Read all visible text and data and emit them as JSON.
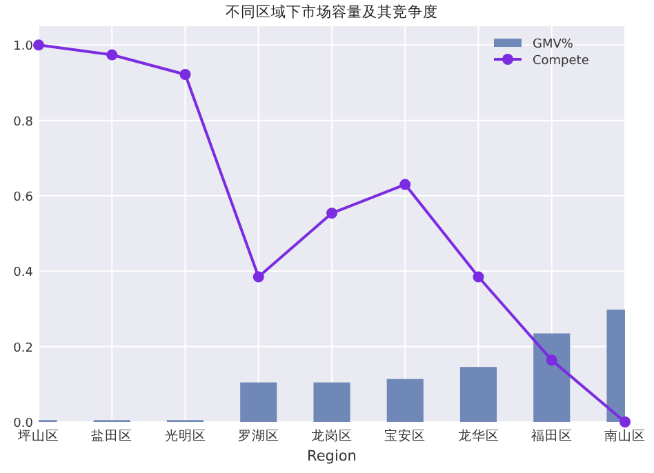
{
  "chart_data": {
    "type": "bar",
    "title": "不同区域下市场容量及其竞争度",
    "xlabel": "Region",
    "categories": [
      "坪山区",
      "盐田区",
      "光明区",
      "罗湖区",
      "龙岗区",
      "宝安区",
      "龙华区",
      "福田区",
      "南山区"
    ],
    "series": [
      {
        "name": "GMV%",
        "color": "#6f88b8",
        "values": [
          0.005,
          0.005,
          0.005,
          0.105,
          0.105,
          0.114,
          0.146,
          0.235,
          0.298
        ]
      },
      {
        "name": "Compete",
        "type": "line",
        "color": "#7b2be0",
        "marker": "circle",
        "values": [
          1.0,
          0.974,
          0.922,
          0.385,
          0.554,
          0.63,
          0.385,
          0.164,
          0.0
        ]
      }
    ],
    "ylim": [
      0,
      1.05
    ],
    "yticks": [
      {
        "value": 0,
        "label": "0.0"
      },
      {
        "value": 0.2,
        "label": "0.2"
      },
      {
        "value": 0.4,
        "label": "0.4"
      },
      {
        "value": 0.6,
        "label": "0.6"
      },
      {
        "value": 0.8,
        "label": "0.8"
      },
      {
        "value": 1.0,
        "label": "1.0"
      }
    ],
    "grid": true,
    "legend": "top right"
  }
}
